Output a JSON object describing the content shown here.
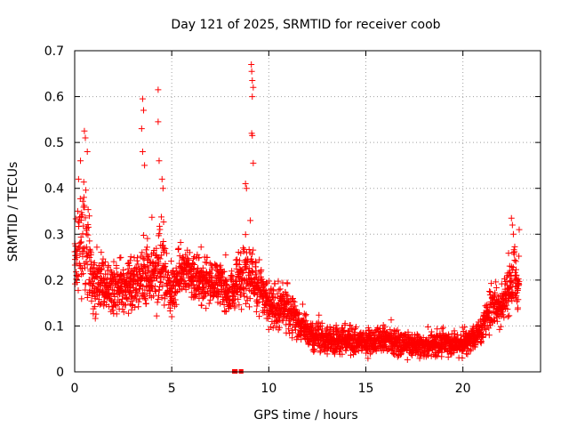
{
  "chart_data": {
    "type": "scatter",
    "title": "Day 121 of 2025, SRMTID for receiver coob",
    "xlabel": "GPS time / hours",
    "ylabel": "SRMTID / TECUs",
    "xlim": [
      0,
      24
    ],
    "ylim": [
      0,
      0.7
    ],
    "xticks": [
      0,
      5,
      10,
      15,
      20
    ],
    "xtick_labels": [
      "0",
      "5",
      "10",
      "15",
      "20"
    ],
    "yticks": [
      0,
      0.1,
      0.2,
      0.3,
      0.4,
      0.5,
      0.6,
      0.7
    ],
    "ytick_labels": [
      "0",
      "0.1",
      "0.2",
      "0.3",
      "0.4",
      "0.5",
      "0.6",
      "0.7"
    ],
    "grid": true,
    "marker": "plus",
    "series": [
      {
        "name": "SRMTID",
        "color": "#ff0000",
        "envelope": [
          {
            "t": 0.0,
            "center": 0.22,
            "spread": 0.08
          },
          {
            "t": 0.25,
            "center": 0.3,
            "spread": 0.12
          },
          {
            "t": 0.5,
            "center": 0.3,
            "spread": 0.14
          },
          {
            "t": 0.75,
            "center": 0.24,
            "spread": 0.1
          },
          {
            "t": 1.0,
            "center": 0.19,
            "spread": 0.06
          },
          {
            "t": 2.0,
            "center": 0.18,
            "spread": 0.06
          },
          {
            "t": 3.0,
            "center": 0.19,
            "spread": 0.06
          },
          {
            "t": 3.5,
            "center": 0.22,
            "spread": 0.07
          },
          {
            "t": 4.0,
            "center": 0.2,
            "spread": 0.07
          },
          {
            "t": 4.5,
            "center": 0.24,
            "spread": 0.09
          },
          {
            "t": 5.0,
            "center": 0.17,
            "spread": 0.05
          },
          {
            "t": 5.5,
            "center": 0.23,
            "spread": 0.06
          },
          {
            "t": 6.0,
            "center": 0.21,
            "spread": 0.05
          },
          {
            "t": 7.0,
            "center": 0.19,
            "spread": 0.05
          },
          {
            "t": 7.5,
            "center": 0.2,
            "spread": 0.05
          },
          {
            "t": 8.0,
            "center": 0.16,
            "spread": 0.04
          },
          {
            "t": 8.5,
            "center": 0.21,
            "spread": 0.06
          },
          {
            "t": 9.0,
            "center": 0.22,
            "spread": 0.07
          },
          {
            "t": 9.5,
            "center": 0.19,
            "spread": 0.06
          },
          {
            "t": 10.0,
            "center": 0.14,
            "spread": 0.05
          },
          {
            "t": 11.0,
            "center": 0.14,
            "spread": 0.05
          },
          {
            "t": 12.0,
            "center": 0.08,
            "spread": 0.03
          },
          {
            "t": 13.0,
            "center": 0.07,
            "spread": 0.03
          },
          {
            "t": 14.0,
            "center": 0.07,
            "spread": 0.03
          },
          {
            "t": 15.0,
            "center": 0.065,
            "spread": 0.03
          },
          {
            "t": 16.0,
            "center": 0.07,
            "spread": 0.03
          },
          {
            "t": 17.0,
            "center": 0.06,
            "spread": 0.025
          },
          {
            "t": 18.0,
            "center": 0.055,
            "spread": 0.025
          },
          {
            "t": 19.0,
            "center": 0.065,
            "spread": 0.03
          },
          {
            "t": 20.0,
            "center": 0.06,
            "spread": 0.025
          },
          {
            "t": 21.0,
            "center": 0.09,
            "spread": 0.03
          },
          {
            "t": 21.5,
            "center": 0.15,
            "spread": 0.05
          },
          {
            "t": 22.0,
            "center": 0.14,
            "spread": 0.04
          },
          {
            "t": 22.5,
            "center": 0.2,
            "spread": 0.07
          },
          {
            "t": 22.9,
            "center": 0.19,
            "spread": 0.06
          }
        ],
        "spikes": [
          {
            "x": 0.5,
            "y": 0.525
          },
          {
            "x": 0.55,
            "y": 0.51
          },
          {
            "x": 0.65,
            "y": 0.48
          },
          {
            "x": 0.3,
            "y": 0.46
          },
          {
            "x": 0.2,
            "y": 0.42
          },
          {
            "x": 3.5,
            "y": 0.595
          },
          {
            "x": 3.55,
            "y": 0.57
          },
          {
            "x": 3.45,
            "y": 0.53
          },
          {
            "x": 3.5,
            "y": 0.48
          },
          {
            "x": 3.6,
            "y": 0.45
          },
          {
            "x": 4.3,
            "y": 0.615
          },
          {
            "x": 4.3,
            "y": 0.545
          },
          {
            "x": 4.35,
            "y": 0.46
          },
          {
            "x": 4.5,
            "y": 0.42
          },
          {
            "x": 4.55,
            "y": 0.4
          },
          {
            "x": 8.8,
            "y": 0.41
          },
          {
            "x": 8.85,
            "y": 0.4
          },
          {
            "x": 9.1,
            "y": 0.67
          },
          {
            "x": 9.12,
            "y": 0.655
          },
          {
            "x": 9.15,
            "y": 0.635
          },
          {
            "x": 9.2,
            "y": 0.62
          },
          {
            "x": 9.15,
            "y": 0.6
          },
          {
            "x": 9.12,
            "y": 0.52
          },
          {
            "x": 9.15,
            "y": 0.515
          },
          {
            "x": 9.2,
            "y": 0.455
          },
          {
            "x": 9.05,
            "y": 0.33
          },
          {
            "x": 22.5,
            "y": 0.335
          },
          {
            "x": 22.55,
            "y": 0.32
          },
          {
            "x": 22.6,
            "y": 0.3
          },
          {
            "x": 22.9,
            "y": 0.31
          }
        ],
        "zero_points": [
          {
            "x": 8.2,
            "y": 0.0
          },
          {
            "x": 8.3,
            "y": 0.0
          },
          {
            "x": 8.55,
            "y": 0.0
          },
          {
            "x": 8.6,
            "y": 0.0
          }
        ]
      }
    ]
  }
}
